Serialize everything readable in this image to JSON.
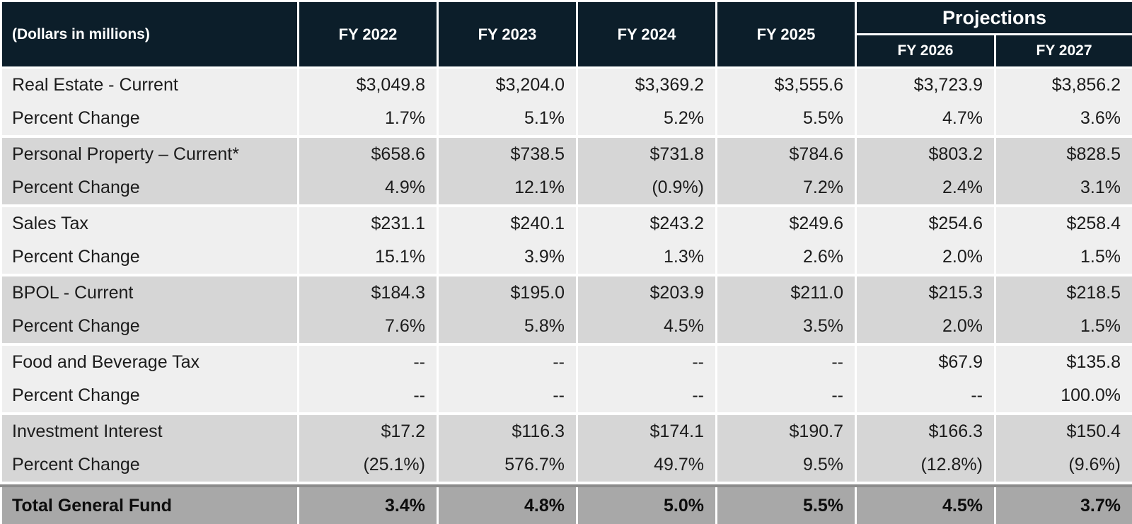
{
  "header": {
    "corner_label": "(Dollars in millions)",
    "projections_label": "Projections",
    "years": [
      "FY 2022",
      "FY 2023",
      "FY 2024",
      "FY 2025",
      "FY 2026",
      "FY 2027"
    ]
  },
  "groups": [
    {
      "name": "Real Estate - Current",
      "values": [
        "$3,049.8",
        "$3,204.0",
        "$3,369.2",
        "$3,555.6",
        "$3,723.9",
        "$3,856.2"
      ],
      "change_label": "Percent Change",
      "change": [
        "1.7%",
        "5.1%",
        "5.2%",
        "5.5%",
        "4.7%",
        "3.6%"
      ]
    },
    {
      "name": "Personal Property – Current*",
      "values": [
        "$658.6",
        "$738.5",
        "$731.8",
        "$784.6",
        "$803.2",
        "$828.5"
      ],
      "change_label": "Percent Change",
      "change": [
        "4.9%",
        "12.1%",
        "(0.9%)",
        "7.2%",
        "2.4%",
        "3.1%"
      ]
    },
    {
      "name": "Sales Tax",
      "values": [
        "$231.1",
        "$240.1",
        "$243.2",
        "$249.6",
        "$254.6",
        "$258.4"
      ],
      "change_label": "Percent Change",
      "change": [
        "15.1%",
        "3.9%",
        "1.3%",
        "2.6%",
        "2.0%",
        "1.5%"
      ]
    },
    {
      "name": "BPOL - Current",
      "values": [
        "$184.3",
        "$195.0",
        "$203.9",
        "$211.0",
        "$215.3",
        "$218.5"
      ],
      "change_label": "Percent Change",
      "change": [
        "7.6%",
        "5.8%",
        "4.5%",
        "3.5%",
        "2.0%",
        "1.5%"
      ]
    },
    {
      "name": "Food and Beverage Tax",
      "values": [
        "--",
        "--",
        "--",
        "--",
        "$67.9",
        "$135.8"
      ],
      "change_label": "Percent Change",
      "change": [
        "--",
        "--",
        "--",
        "--",
        "--",
        "100.0%"
      ]
    },
    {
      "name": "Investment Interest",
      "values": [
        "$17.2",
        "$116.3",
        "$174.1",
        "$190.7",
        "$166.3",
        "$150.4"
      ],
      "change_label": "Percent Change",
      "change": [
        "(25.1%)",
        "576.7%",
        "49.7%",
        "9.5%",
        "(12.8%)",
        "(9.6%)"
      ]
    }
  ],
  "total": {
    "label": "Total General Fund",
    "values": [
      "3.4%",
      "4.8%",
      "5.0%",
      "5.5%",
      "4.5%",
      "3.7%"
    ]
  },
  "colors": {
    "header_bg": "#0c1e2a",
    "row_light": "#efefef",
    "row_dark": "#d6d6d6",
    "total_bg": "#a8a8a8"
  }
}
